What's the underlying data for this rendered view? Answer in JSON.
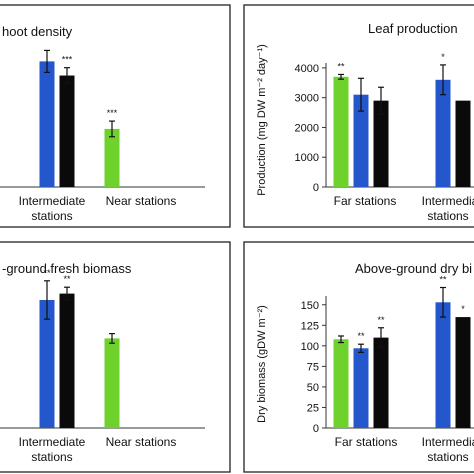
{
  "colors": {
    "green": "#6fd12b",
    "blue": "#2456cc",
    "black": "#0a0a0a"
  },
  "chart_data": [
    {
      "type": "bar",
      "title": "hoot density",
      "categories": [
        "Intermediate\nstations",
        "Near stations"
      ],
      "series": [
        {
          "color": "blue",
          "values": [
            null,
            null
          ],
          "annot": [
            "",
            ""
          ]
        },
        {
          "color": "black",
          "values": [
            null,
            null
          ],
          "annot": [
            "***",
            ""
          ]
        },
        {
          "color": "green",
          "values": [
            null,
            null
          ],
          "annot": [
            "",
            "***"
          ]
        }
      ],
      "bars": [
        {
          "cat": 0,
          "color": "blue",
          "v": 0.8,
          "e": 0.07,
          "label": ""
        },
        {
          "cat": 0,
          "color": "black",
          "v": 0.71,
          "e": 0.05,
          "label": "***"
        },
        {
          "cat": 1,
          "color": "green",
          "v": 0.37,
          "e": 0.05,
          "label": "***"
        }
      ]
    },
    {
      "type": "bar",
      "title": "Leaf  production",
      "ylabel": "Production  (mg DW m⁻² day⁻¹)",
      "yticks": [
        "0",
        "1000",
        "2000",
        "3000",
        "4000"
      ],
      "ylim": [
        0,
        4500
      ],
      "categories": [
        "Far stations",
        "Intermediate\nstations"
      ],
      "bars": [
        {
          "cat": 0,
          "color": "green",
          "v": 3700,
          "e": 80,
          "label": "**"
        },
        {
          "cat": 0,
          "color": "blue",
          "v": 3100,
          "e": 550,
          "label": ""
        },
        {
          "cat": 0,
          "color": "black",
          "v": 2900,
          "e": 450,
          "label": ""
        },
        {
          "cat": 1,
          "color": "blue",
          "v": 3600,
          "e": 500,
          "label": "*"
        },
        {
          "cat": 1,
          "color": "black",
          "v": 2900,
          "e": 0,
          "label": ""
        }
      ]
    },
    {
      "type": "bar",
      "title": "-ground  fresh biomass",
      "categories": [
        "Intermediate\nstations",
        "Near stations"
      ],
      "bars": [
        {
          "cat": 0,
          "color": "blue",
          "v": 0.8,
          "e": 0.12,
          "label": "**"
        },
        {
          "cat": 0,
          "color": "black",
          "v": 0.84,
          "e": 0.04,
          "label": "**"
        },
        {
          "cat": 1,
          "color": "green",
          "v": 0.56,
          "e": 0.03,
          "label": ""
        }
      ]
    },
    {
      "type": "bar",
      "title": "Above-ground dry bi",
      "ylabel": "Dry biomass (gDW m⁻²)",
      "yticks": [
        "0",
        "25",
        "50",
        "75",
        "100",
        "125",
        "150"
      ],
      "ylim": [
        0,
        185
      ],
      "categories": [
        "Far stations",
        "Intermedia\nstations"
      ],
      "bars": [
        {
          "cat": 0,
          "color": "green",
          "v": 108,
          "e": 4,
          "label": ""
        },
        {
          "cat": 0,
          "color": "blue",
          "v": 97,
          "e": 5,
          "label": "**"
        },
        {
          "cat": 0,
          "color": "black",
          "v": 110,
          "e": 12,
          "label": "**"
        },
        {
          "cat": 1,
          "color": "blue",
          "v": 153,
          "e": 18,
          "label": "**"
        },
        {
          "cat": 1,
          "color": "black",
          "v": 135,
          "e": 0,
          "label": "*"
        }
      ]
    }
  ],
  "panels_text": {
    "p1": {
      "title": "hoot density",
      "cat0a": "Intermediate",
      "cat0b": "stations",
      "cat1": "Near stations"
    },
    "p2": {
      "title": "Leaf  production",
      "ylabel": "Production  (mg DW m⁻² day⁻¹)",
      "cat0": "Far stations",
      "cat1a": "Intermediate",
      "cat1b": "stations"
    },
    "p3": {
      "title": "-ground  fresh biomass",
      "cat0a": "Intermediate",
      "cat0b": "stations",
      "cat1": "Near stations"
    },
    "p4": {
      "title": "Above-ground dry bi",
      "ylabel": "Dry biomass (gDW m⁻²)",
      "cat0": "Far stations",
      "cat1a": "Intermedia",
      "cat1b": "stations"
    }
  }
}
